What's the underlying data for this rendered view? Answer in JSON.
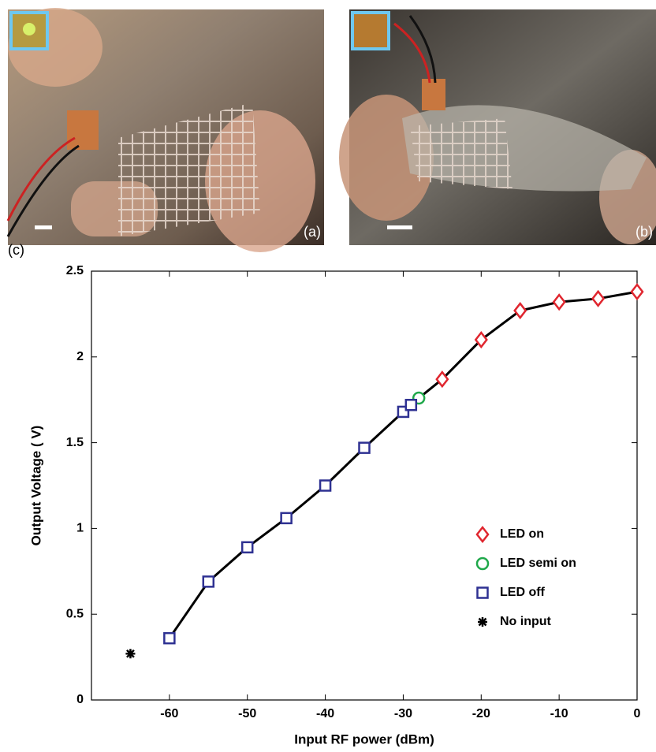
{
  "panel_labels": [
    "(a)",
    "(b)",
    "(c)"
  ],
  "chart_data": {
    "type": "scatter",
    "xlabel": "Input RF power (dBm)",
    "ylabel": "Output Voltage ( V)",
    "xlim": [
      -70,
      0
    ],
    "xticks": [
      -60,
      -50,
      -40,
      -30,
      -20,
      -10,
      0
    ],
    "ylim": [
      0,
      2.5
    ],
    "yticks": [
      0,
      0.5,
      1,
      1.5,
      2,
      2.5
    ],
    "line_color": "#000000",
    "legend": "right",
    "series": [
      {
        "name": "LED on",
        "marker": "diamond",
        "color": "#e0262f",
        "line": true,
        "x": [
          -25,
          -20,
          -15,
          -10,
          -5,
          0
        ],
        "values": [
          1.87,
          2.1,
          2.27,
          2.32,
          2.34,
          2.38
        ]
      },
      {
        "name": "LED semi on",
        "marker": "circle",
        "color": "#1fa84a",
        "line": true,
        "x": [
          -28
        ],
        "values": [
          1.76
        ]
      },
      {
        "name": "LED off",
        "marker": "square",
        "color": "#2e3192",
        "line": true,
        "x": [
          -60,
          -55,
          -50,
          -45,
          -40,
          -35,
          -30,
          -29
        ],
        "values": [
          0.36,
          0.69,
          0.89,
          1.06,
          1.25,
          1.47,
          1.68,
          1.72
        ]
      },
      {
        "name": "No input",
        "marker": "star",
        "color": "#000000",
        "line": false,
        "x": [
          -65
        ],
        "values": [
          0.27
        ]
      }
    ]
  }
}
